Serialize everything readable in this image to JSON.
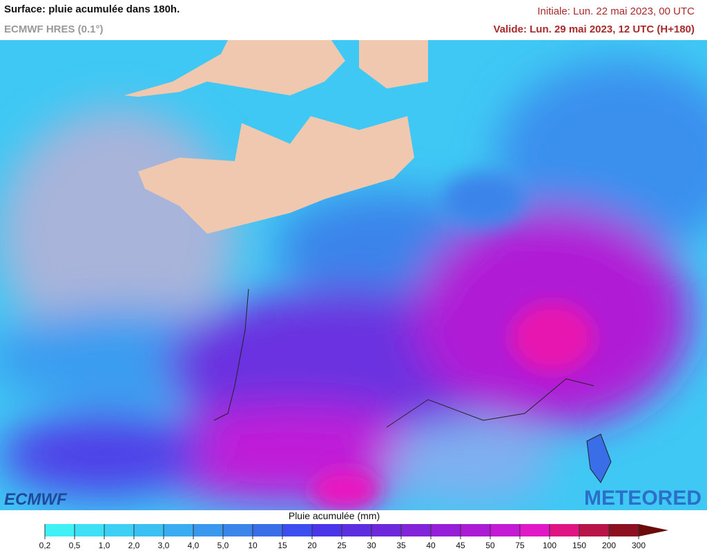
{
  "header": {
    "title": "Surface: pluie acumulée dans 180h.",
    "subtitle": "ECMWF HRES (0.1°)",
    "initial": "Initiale: Lun. 22 mai 2023, 00 UTC",
    "valid": "Valide: Lun. 29 mai 2023, 12 UTC (H+180)"
  },
  "logos": {
    "left": "ECMWF",
    "right": "METEORED"
  },
  "legend": {
    "title": "Pluie acumulée (mm)",
    "ticks": [
      "0,2",
      "0,5",
      "1,0",
      "2,0",
      "3,0",
      "4,0",
      "5,0",
      "10",
      "15",
      "20",
      "25",
      "30",
      "35",
      "40",
      "45",
      "50",
      "75",
      "100",
      "150",
      "200",
      "300"
    ],
    "colors": [
      "#3ff0f4",
      "#3de0f4",
      "#3cd0f4",
      "#3bc0f4",
      "#3aacf2",
      "#3a98ee",
      "#3a84ea",
      "#3a6ee8",
      "#3c4ef0",
      "#4a36e8",
      "#5c2ee0",
      "#6e28dc",
      "#8224da",
      "#9620d8",
      "#ac1cd6",
      "#c41ad6",
      "#e018c8",
      "#e01482",
      "#b81448",
      "#8c1020",
      "#6a0a0a"
    ]
  }
}
